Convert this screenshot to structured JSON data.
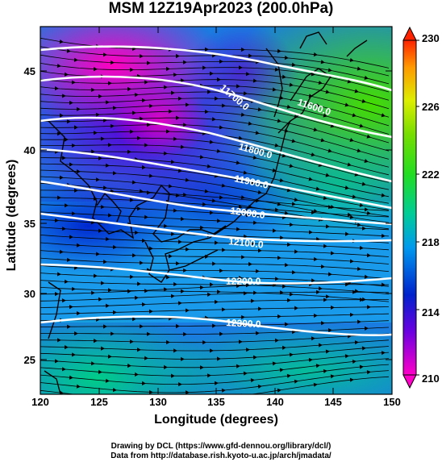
{
  "title": "MSM 12Z19Apr2023 (200.0hPa)",
  "x_axis_label": "Longitude (degrees)",
  "y_axis_label": "Latitude  (degrees)",
  "x_ticks": [
    "120",
    "125",
    "130",
    "135",
    "140",
    "145",
    "150"
  ],
  "y_ticks": [
    "25",
    "30",
    "35",
    "40",
    "45"
  ],
  "colorbar_ticks": [
    "210",
    "214",
    "218",
    "222",
    "226",
    "230"
  ],
  "contour_labels": [
    "11600.0",
    "11800.0",
    "11900.0",
    "12000.0",
    "12100.0",
    "12200.0",
    "12300.0",
    "11700.0"
  ],
  "footer": {
    "line1": "Drawing by DCL (https://www.gfd-dennou.org/library/dcl/)",
    "line2": "Data from http://database.rish.kyoto-u.ac.jp/arch/jmadata/"
  },
  "map": {
    "lon_range": [
      120,
      150
    ],
    "lat_range": [
      22.5,
      48
    ],
    "colorbar_range": [
      210,
      230
    ]
  },
  "colors": {
    "cb_stops": [
      "#ff00c8",
      "#6a00e0",
      "#0033d8",
      "#0099ee",
      "#00cc99",
      "#33dd00",
      "#bbee00",
      "#ff8800",
      "#ff2200"
    ]
  }
}
